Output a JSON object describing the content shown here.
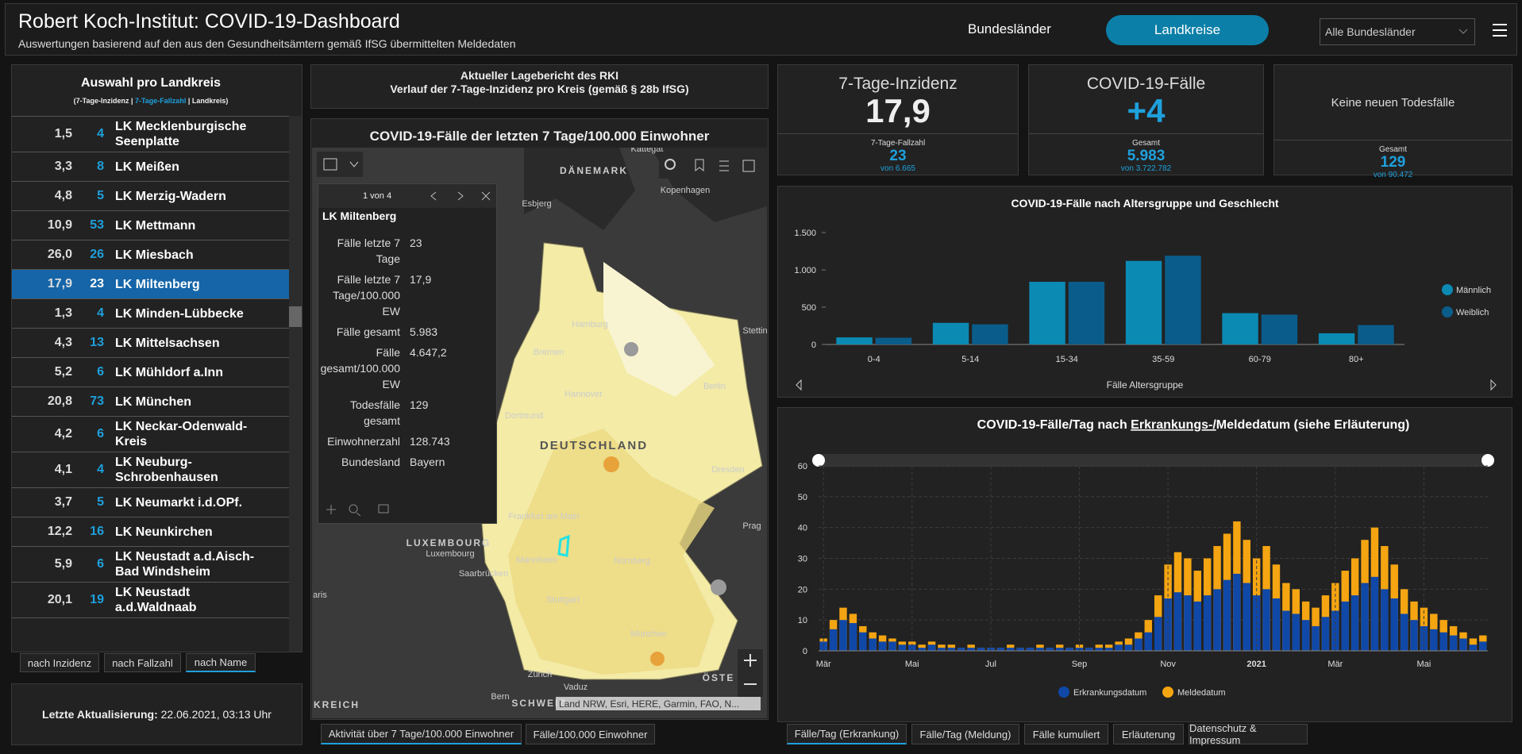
{
  "header": {
    "title": "Robert Koch-Institut: COVID-19-Dashboard",
    "subtitle": "Auswertungen basierend auf den aus den Gesundheitsämtern gemäß IfSG übermittelten Meldedaten"
  },
  "nav": {
    "tab_states": "Bundesländer",
    "tab_districts": "Landkreise",
    "dropdown": "Alle Bundesländer"
  },
  "list": {
    "title": "Auswahl pro Landkreis",
    "subtitle_parts": [
      "(7-Tage-Inzidenz | ",
      "7-Tage-Fallzahl",
      " | Landkreis)"
    ],
    "rows": [
      {
        "incidence": "1,5",
        "cases": "4",
        "name": "LK Mecklenburgische Seenplatte"
      },
      {
        "incidence": "3,3",
        "cases": "8",
        "name": "LK Meißen"
      },
      {
        "incidence": "4,8",
        "cases": "5",
        "name": "LK Merzig-Wadern"
      },
      {
        "incidence": "10,9",
        "cases": "53",
        "name": "LK Mettmann"
      },
      {
        "incidence": "26,0",
        "cases": "26",
        "name": "LK Miesbach"
      },
      {
        "incidence": "17,9",
        "cases": "23",
        "name": "LK Miltenberg",
        "selected": true
      },
      {
        "incidence": "1,3",
        "cases": "4",
        "name": "LK Minden-Lübbecke"
      },
      {
        "incidence": "4,3",
        "cases": "13",
        "name": "LK Mittelsachsen"
      },
      {
        "incidence": "5,2",
        "cases": "6",
        "name": "LK Mühldorf a.Inn"
      },
      {
        "incidence": "20,8",
        "cases": "73",
        "name": "LK München"
      },
      {
        "incidence": "4,2",
        "cases": "6",
        "name": "LK Neckar-Odenwald-Kreis"
      },
      {
        "incidence": "4,1",
        "cases": "4",
        "name": "LK Neuburg-Schrobenhausen"
      },
      {
        "incidence": "3,7",
        "cases": "5",
        "name": "LK Neumarkt i.d.OPf."
      },
      {
        "incidence": "12,2",
        "cases": "16",
        "name": "LK Neunkirchen"
      },
      {
        "incidence": "5,9",
        "cases": "6",
        "name": "LK Neustadt a.d.Aisch-Bad Windsheim"
      },
      {
        "incidence": "20,1",
        "cases": "19",
        "name": "LK Neustadt a.d.Waldnaab"
      }
    ]
  },
  "sort_buttons": [
    "nach Inzidenz",
    "nach Fallzahl",
    "nach Name"
  ],
  "last_update": {
    "label": "Letzte Aktualisierung:",
    "value": "22.06.2021, 03:13 Uhr"
  },
  "report": {
    "line1": "Aktueller Lagebericht des RKI",
    "line2": "Verlauf der 7-Tage-Inzidenz pro Kreis (gemäß § 28b IfSG)"
  },
  "map": {
    "title": "COVID-19-Fälle der letzten 7 Tage/100.000 Einwohner",
    "labels": [
      "Kattegat",
      "DÄNEMARK",
      "Esbjerg",
      "Kopenhagen",
      "Hamburg",
      "Bremen",
      "Hannover",
      "Berlin",
      "Stettin",
      "Dortmund",
      "Dresden",
      "DEUTSCHLAND",
      "Frankfurt am Main",
      "Mannheim",
      "Saarbrücken",
      "Nürnberg",
      "Stuttgart",
      "München",
      "LUXEMBOURG",
      "Luxembourg",
      "Prag",
      "aris",
      "Zürich",
      "Bern",
      "SCHWEIZ",
      "Vaduz",
      "ÖSTE",
      "KREICH"
    ],
    "attribution": "Land NRW, Esri, HERE, Garmin, FAO, N...",
    "tabs": [
      "Aktivität über 7 Tage/100.000 Einwohner",
      "Fälle/100.000 Einwohner"
    ]
  },
  "popup": {
    "pager": "1 von 4",
    "title": "LK Miltenberg",
    "fields": [
      [
        "Fälle letzte 7 Tage",
        "23"
      ],
      [
        "Fälle letzte 7 Tage/100.000 EW",
        "17,9"
      ],
      [
        "Fälle gesamt",
        "5.983"
      ],
      [
        "Fälle gesamt/100.000 EW",
        "4.647,2"
      ],
      [
        "Todesfälle gesamt",
        "129"
      ],
      [
        "Einwohnerzahl",
        "128.743"
      ],
      [
        "Bundesland",
        "Bayern"
      ]
    ]
  },
  "kpis": [
    {
      "title": "7-Tage-Inzidenz",
      "value": "17,9",
      "sub_label": "7-Tage-Fallzahl",
      "sub_value": "23",
      "sub_total": "von 6.665"
    },
    {
      "title": "COVID-19-Fälle",
      "value": "+4",
      "sub_label": "Gesamt",
      "sub_value": "5.983",
      "sub_total": "von 3.722.782"
    },
    {
      "title": "Keine neuen Todesfälle",
      "sub_label": "Gesamt",
      "sub_value": "129",
      "sub_total": "von 90.472"
    }
  ],
  "bottom_tabs": [
    "Fälle/Tag (Erkrankung)",
    "Fälle/Tag (Meldung)",
    "Fälle kumuliert",
    "Erläuterung",
    "Datenschutz & Impressum"
  ],
  "chart_data": [
    {
      "type": "bar",
      "title": "COVID-19-Fälle nach Altersgruppe und Geschlecht",
      "x_label": "Fälle Altersgruppe",
      "categories": [
        "0-4",
        "5-14",
        "15-34",
        "35-59",
        "60-79",
        "80+"
      ],
      "series": [
        {
          "name": "Männlich",
          "color": "#0b8ab4",
          "values": [
            95,
            290,
            840,
            1120,
            420,
            150
          ]
        },
        {
          "name": "Weiblich",
          "color": "#0a5d8a",
          "values": [
            90,
            270,
            840,
            1190,
            400,
            260
          ]
        }
      ],
      "ylim": [
        0,
        1500
      ],
      "yticks": [
        0,
        500,
        {
          "value": 1000,
          "label": "1.000"
        },
        {
          "value": 1500,
          "label": "1.500"
        }
      ],
      "legend": "right"
    },
    {
      "type": "overlap-bar",
      "title_parts": [
        "COVID-19-Fälle/Tag nach ",
        "Erkrankungs-/",
        "Meldedatum (siehe Erläuterung)"
      ],
      "categories": [
        "Mär",
        null,
        null,
        null,
        null,
        null,
        null,
        null,
        null,
        "Mai",
        null,
        null,
        null,
        null,
        null,
        null,
        null,
        "Jul",
        null,
        null,
        null,
        null,
        null,
        null,
        null,
        null,
        "Sep",
        null,
        null,
        null,
        null,
        null,
        null,
        null,
        null,
        "Nov",
        null,
        null,
        null,
        null,
        null,
        null,
        null,
        null,
        "2021",
        null,
        null,
        null,
        null,
        null,
        null,
        null,
        "Mär",
        null,
        null,
        null,
        null,
        null,
        null,
        null,
        null,
        "Mai",
        null,
        null,
        null,
        null,
        null,
        null
      ],
      "series": [
        {
          "name": "Meldedatum",
          "color": "#f5a511",
          "values": [
            4,
            10,
            14,
            12,
            8,
            6,
            5,
            4,
            3,
            3,
            2,
            3,
            2,
            2,
            1,
            2,
            1,
            1,
            1,
            2,
            1,
            1,
            2,
            1,
            2,
            1,
            2,
            1,
            2,
            2,
            3,
            4,
            6,
            10,
            18,
            28,
            32,
            30,
            26,
            30,
            34,
            38,
            42,
            36,
            30,
            34,
            28,
            22,
            20,
            16,
            14,
            18,
            22,
            26,
            30,
            36,
            40,
            34,
            28,
            20,
            16,
            14,
            12,
            10,
            8,
            6,
            4,
            5
          ]
        },
        {
          "name": "Erkrankungsdatum",
          "color": "#1048a8",
          "values": [
            3,
            7,
            10,
            9,
            6,
            4,
            3,
            3,
            2,
            2,
            1,
            2,
            1,
            1,
            1,
            1,
            1,
            1,
            1,
            1,
            1,
            1,
            1,
            1,
            1,
            1,
            1,
            1,
            1,
            1,
            2,
            2,
            4,
            6,
            11,
            17,
            19,
            18,
            16,
            18,
            20,
            23,
            25,
            22,
            18,
            20,
            17,
            13,
            12,
            10,
            8,
            11,
            13,
            16,
            18,
            22,
            24,
            20,
            17,
            12,
            10,
            8,
            7,
            6,
            5,
            4,
            2,
            3
          ]
        }
      ],
      "ylim": [
        0,
        60
      ],
      "yticks": [
        0,
        10,
        20,
        30,
        40,
        50,
        60
      ],
      "grid": true,
      "legend": "bottom"
    }
  ]
}
